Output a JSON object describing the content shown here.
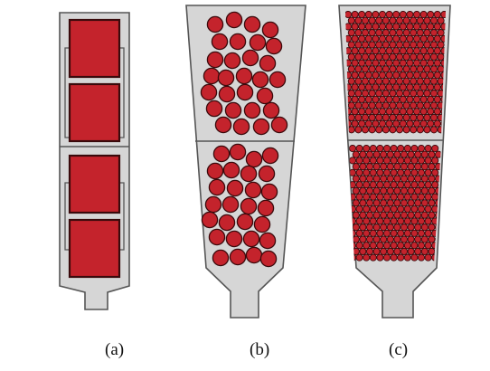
{
  "figure": {
    "panels": [
      {
        "id": "a",
        "label": "(a)",
        "content": "cubes",
        "count": 4
      },
      {
        "id": "b",
        "label": "(b)",
        "content": "spheres",
        "size": "large"
      },
      {
        "id": "c",
        "label": "(c)",
        "content": "spheres",
        "size": "small"
      }
    ]
  },
  "colors": {
    "mould_fill": "#d6d6d6",
    "mould_stroke": "#555555",
    "particle_fill": "#c4232c",
    "particle_stroke": "#3a0a0c",
    "background": "#ffffff"
  }
}
